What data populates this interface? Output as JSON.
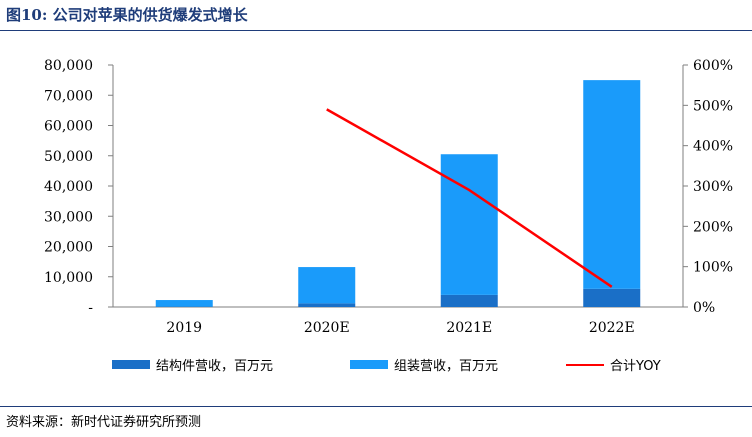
{
  "figure": {
    "title": "图10:   公司对苹果的供货爆发式增长",
    "source": "资料来源：新时代证券研究所预测"
  },
  "colors": {
    "structural": "#1a6fc7",
    "assembly": "#1a9bfa",
    "yoy": "#ff0000",
    "title": "#1f3d7a"
  },
  "chart_data": {
    "type": "bar",
    "stacked": true,
    "categories": [
      "2019",
      "2020E",
      "2021E",
      "2022E"
    ],
    "series": [
      {
        "name": "结构件营收，百万元",
        "axis": "left",
        "values": [
          100,
          1200,
          4000,
          6000
        ]
      },
      {
        "name": "组装营收，百万元",
        "axis": "left",
        "values": [
          2200,
          12000,
          46500,
          69000
        ]
      },
      {
        "name": "合计YOY",
        "axis": "right",
        "type": "line",
        "values": [
          null,
          490,
          290,
          50
        ]
      }
    ],
    "y_left": {
      "ylim": [
        0,
        80000
      ],
      "ticks": [
        "-",
        "10,000",
        "20,000",
        "30,000",
        "40,000",
        "50,000",
        "60,000",
        "70,000",
        "80,000"
      ]
    },
    "y_right": {
      "ylim": [
        0,
        600
      ],
      "unit": "%",
      "ticks": [
        "0%",
        "100%",
        "200%",
        "300%",
        "400%",
        "500%",
        "600%"
      ]
    },
    "legend_position": "bottom",
    "grid": false
  }
}
